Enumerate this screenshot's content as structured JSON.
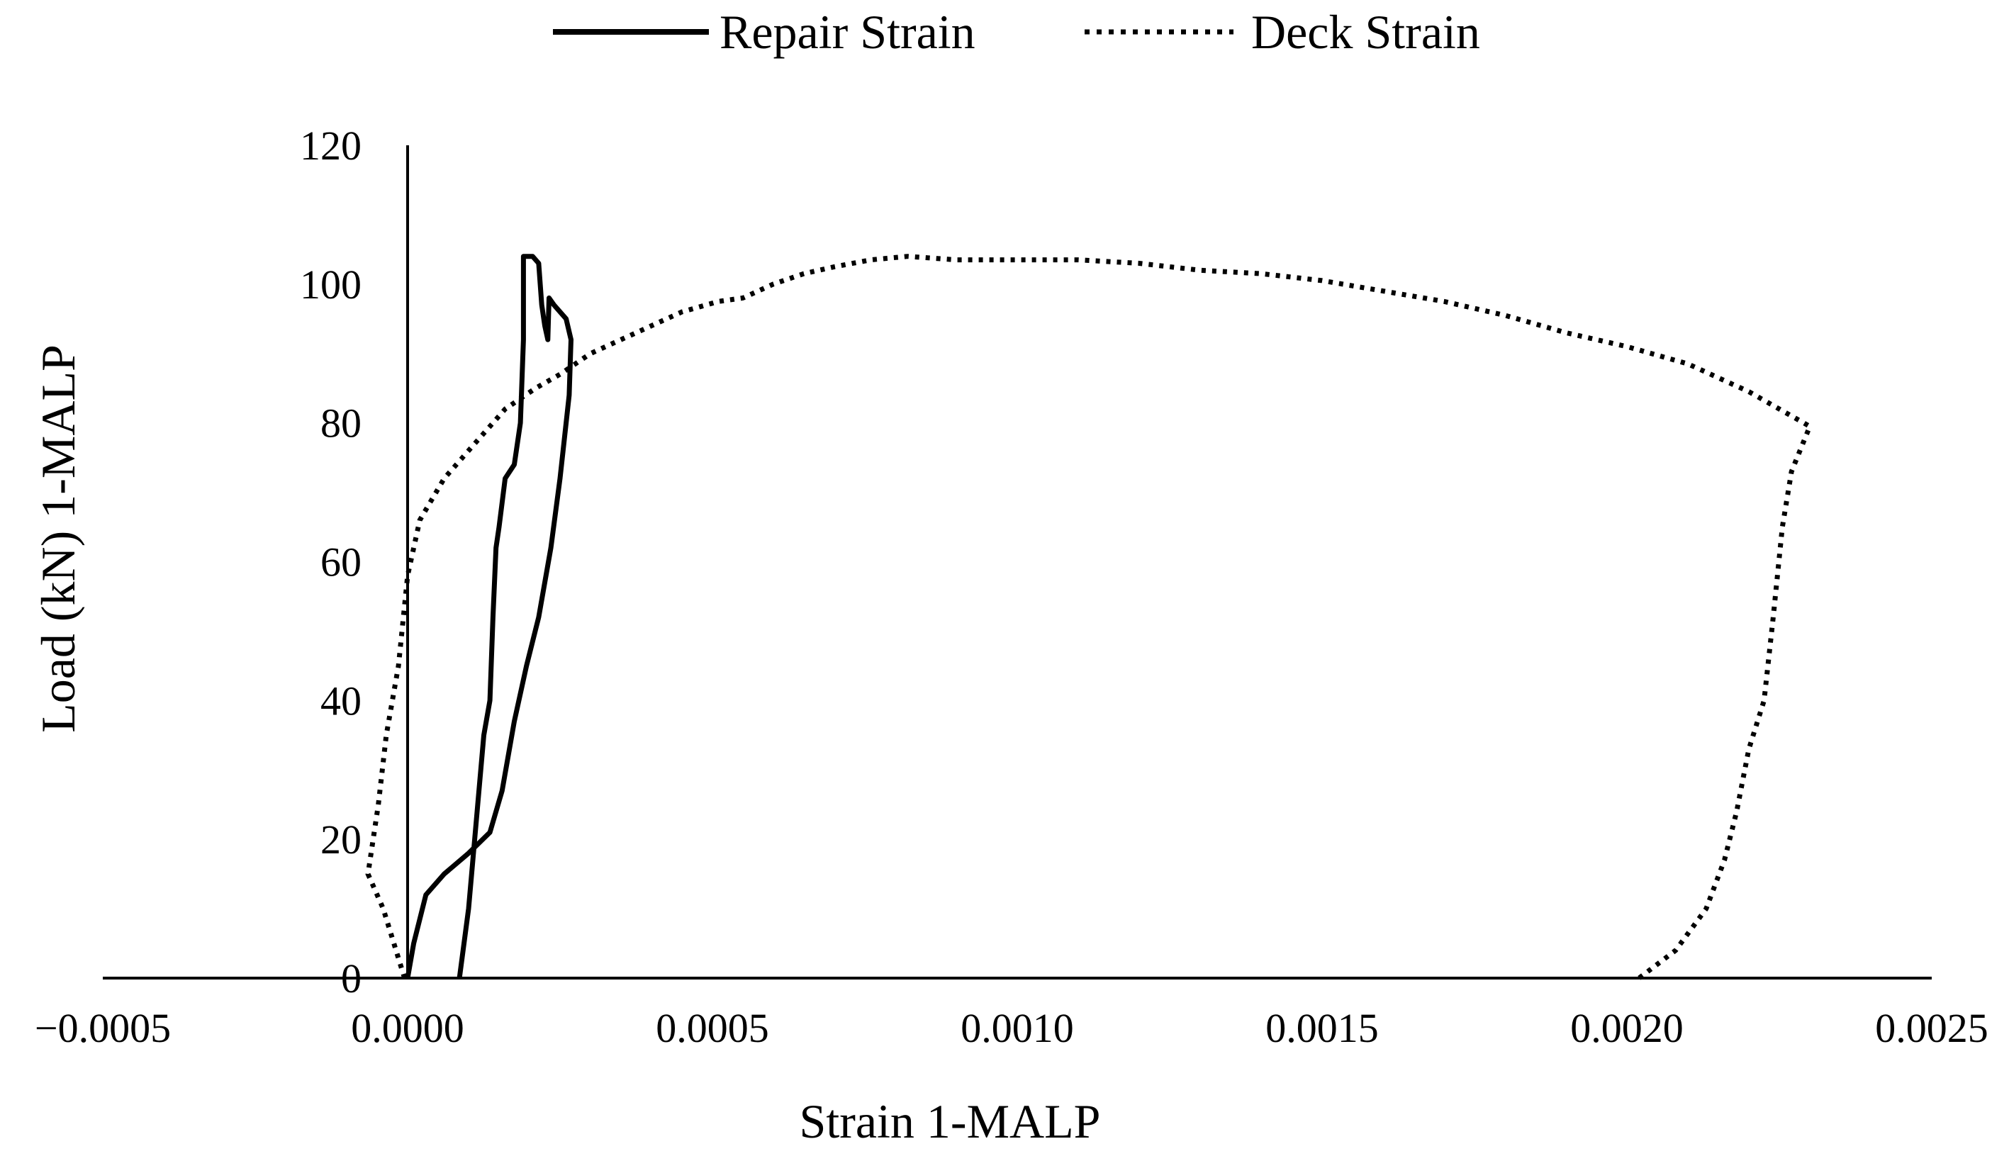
{
  "chart_data": {
    "type": "line",
    "xlabel": "Strain 1-MALP",
    "ylabel": "Load (kN) 1-MALP",
    "xlim": [
      -0.0005,
      0.0025
    ],
    "ylim": [
      0,
      120
    ],
    "x_ticks": [
      "−0.0005",
      "0.0000",
      "0.0005",
      "0.0010",
      "0.0015",
      "0.0020",
      "0.0025"
    ],
    "x_tick_values": [
      -0.0005,
      0,
      0.0005,
      0.001,
      0.0015,
      0.002,
      0.0025
    ],
    "y_ticks": [
      "0",
      "20",
      "40",
      "60",
      "80",
      "100",
      "120"
    ],
    "y_tick_values": [
      0,
      20,
      40,
      60,
      80,
      100,
      120
    ],
    "grid": false,
    "legend_position": "top-center",
    "series": [
      {
        "name": "Repair Strain",
        "style": "solid",
        "color": "#000000",
        "points": [
          [
            0.0,
            0
          ],
          [
            0.0,
            20
          ],
          [
            0.0,
            40
          ],
          [
            0.0,
            60
          ],
          [
            0.0,
            80
          ],
          [
            0.0,
            100
          ],
          [
            0.0,
            120
          ]
        ],
        "loop_points": [
          [
            8.5e-05,
            0
          ],
          [
            0.0001,
            10
          ],
          [
            0.00011,
            20
          ],
          [
            0.000125,
            35
          ],
          [
            0.000135,
            40
          ],
          [
            0.00014,
            52
          ],
          [
            0.000145,
            62
          ],
          [
            0.00015,
            65
          ],
          [
            0.00016,
            72
          ],
          [
            0.000175,
            74
          ],
          [
            0.000185,
            80
          ],
          [
            0.00019,
            92
          ],
          [
            0.00019,
            104
          ],
          [
            0.000205,
            104
          ],
          [
            0.000215,
            103
          ],
          [
            0.00022,
            97
          ],
          [
            0.000225,
            94
          ],
          [
            0.00023,
            92
          ],
          [
            0.000232,
            98
          ],
          [
            0.00024,
            97
          ],
          [
            0.00026,
            95
          ],
          [
            0.000268,
            92
          ],
          [
            0.000265,
            84
          ],
          [
            0.00025,
            72
          ],
          [
            0.000235,
            62
          ],
          [
            0.000215,
            52
          ],
          [
            0.000195,
            45
          ],
          [
            0.000175,
            37
          ],
          [
            0.000155,
            27
          ],
          [
            0.000135,
            21
          ],
          [
            0.0001,
            18
          ],
          [
            6e-05,
            15
          ],
          [
            3e-05,
            12
          ],
          [
            1e-05,
            5
          ],
          [
            0.0,
            0
          ]
        ]
      },
      {
        "name": "Deck Strain",
        "style": "dotted",
        "color": "#000000",
        "points": [
          [
            -5e-06,
            0
          ],
          [
            -4e-05,
            10
          ],
          [
            -6.5e-05,
            15
          ],
          [
            -4.8e-05,
            25
          ],
          [
            -3.5e-05,
            35
          ],
          [
            -1.5e-05,
            45
          ],
          [
            0.0,
            58
          ],
          [
            2e-05,
            66
          ],
          [
            6e-05,
            72
          ],
          [
            0.00011,
            77
          ],
          [
            0.00016,
            82
          ],
          [
            0.00021,
            85
          ],
          [
            0.00025,
            87
          ],
          [
            0.0003,
            90
          ],
          [
            0.00035,
            92
          ],
          [
            0.0004,
            94
          ],
          [
            0.00045,
            96
          ],
          [
            0.00051,
            97.5
          ],
          [
            0.00055,
            98
          ],
          [
            0.0006,
            100
          ],
          [
            0.00065,
            101.5
          ],
          [
            0.0007,
            102.5
          ],
          [
            0.00076,
            103.5
          ],
          [
            0.00082,
            104
          ],
          [
            0.0009,
            103.5
          ],
          [
            0.001,
            103.5
          ],
          [
            0.0011,
            103.5
          ],
          [
            0.0012,
            103
          ],
          [
            0.0013,
            102
          ],
          [
            0.0014,
            101.5
          ],
          [
            0.0015,
            100.5
          ],
          [
            0.0016,
            99
          ],
          [
            0.0017,
            97.5
          ],
          [
            0.0018,
            95.5
          ],
          [
            0.0019,
            93
          ],
          [
            0.002,
            91
          ],
          [
            0.0021,
            88.5
          ],
          [
            0.0022,
            84.5
          ],
          [
            0.00227,
            81
          ],
          [
            0.0023,
            79.5
          ],
          [
            0.00227,
            73
          ],
          [
            0.002255,
            65
          ],
          [
            0.00224,
            52
          ],
          [
            0.002225,
            40
          ],
          [
            0.0022,
            33
          ],
          [
            0.00218,
            24
          ],
          [
            0.00216,
            17
          ],
          [
            0.00213,
            10
          ],
          [
            0.00208,
            4
          ],
          [
            0.00202,
            0
          ]
        ]
      }
    ]
  }
}
